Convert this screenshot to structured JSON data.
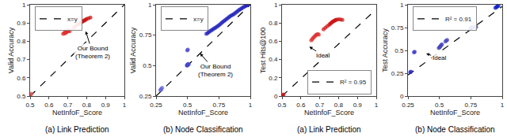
{
  "chart_data": [
    {
      "type": "scatter",
      "caption": "(a) Link Prediction",
      "xlabel": "NetInfoF_Score",
      "ylabel": "Valid Accuracy",
      "xlim": [
        0.5,
        1.0
      ],
      "ylim": [
        0.5,
        1.0
      ],
      "xticks": [
        0.5,
        0.6,
        0.7,
        0.8,
        0.9,
        1.0
      ],
      "yticks": [
        0.5,
        0.6,
        0.7,
        0.8,
        0.9,
        1.0
      ],
      "grid": false,
      "legend": "upper left",
      "annotations": [
        {
          "text": "Our Bound\n(Theorem 2)",
          "x": 0.795,
          "y": 0.855,
          "text_x": 0.83,
          "text_y": 0.74
        }
      ],
      "series": [
        {
          "name": "x=y",
          "type": "line",
          "line_style": "dashed",
          "color": "#000000",
          "x": [
            0.5,
            1.0
          ],
          "values": [
            0.5,
            1.0
          ]
        },
        {
          "type": "scatter",
          "color": "#e05050",
          "x": [
            0.503,
            0.507
          ],
          "values": [
            0.508,
            0.513
          ]
        },
        {
          "type": "scatter",
          "color": "#e03030",
          "x": [
            0.675,
            0.68,
            0.685,
            0.69,
            0.695,
            0.7,
            0.705,
            0.71,
            0.695,
            0.7,
            0.69,
            0.685
          ],
          "values": [
            0.84,
            0.845,
            0.848,
            0.852,
            0.856,
            0.86,
            0.858,
            0.854,
            0.85,
            0.855,
            0.848,
            0.843
          ]
        },
        {
          "type": "scatter",
          "color": "#cc1111",
          "x": [
            0.73,
            0.74,
            0.75,
            0.755,
            0.76,
            0.765,
            0.77,
            0.775,
            0.78,
            0.785,
            0.79,
            0.795,
            0.8,
            0.81,
            0.82
          ],
          "values": [
            0.875,
            0.882,
            0.89,
            0.893,
            0.896,
            0.899,
            0.903,
            0.906,
            0.91,
            0.912,
            0.916,
            0.918,
            0.922,
            0.926,
            0.93
          ]
        }
      ]
    },
    {
      "type": "scatter",
      "caption": "(b) Node Classification",
      "xlabel": "NetInfoF_Score",
      "ylabel": "Valid Accuracy",
      "xlim": [
        0.25,
        1.0
      ],
      "ylim": [
        0.25,
        1.0
      ],
      "xticks": [
        0.25,
        0.5,
        0.75,
        1.0
      ],
      "yticks": [
        0.25,
        0.5,
        0.75,
        1.0
      ],
      "grid": false,
      "legend": "upper left",
      "annotations": [
        {
          "text": "Our Bound\n(Theorem 2)",
          "x": 0.6,
          "y": 0.6,
          "text_x": 0.72,
          "text_y": 0.46
        }
      ],
      "series": [
        {
          "name": "x=y",
          "type": "line",
          "line_style": "dashed",
          "color": "#000000",
          "x": [
            0.25,
            1.0
          ],
          "values": [
            0.25,
            1.0
          ]
        },
        {
          "type": "scatter",
          "color": "#6666dd",
          "x": [
            0.285,
            0.292,
            0.298,
            0.29,
            0.287
          ],
          "values": [
            0.298,
            0.308,
            0.318,
            0.305,
            0.302
          ]
        },
        {
          "type": "scatter",
          "color": "#4444cc",
          "x": [
            0.495,
            0.5,
            0.505,
            0.51,
            0.5,
            0.497
          ],
          "values": [
            0.502,
            0.508,
            0.514,
            0.51,
            0.504,
            0.5
          ]
        },
        {
          "type": "scatter",
          "color": "#4444cc",
          "x": [
            0.498,
            0.503
          ],
          "values": [
            0.625,
            0.632
          ]
        },
        {
          "type": "scatter",
          "color": "#2222bb",
          "x": [
            0.65,
            0.66,
            0.67,
            0.68,
            0.69,
            0.7,
            0.71,
            0.72,
            0.73,
            0.74,
            0.75,
            0.76,
            0.77,
            0.78,
            0.79,
            0.8,
            0.81,
            0.82,
            0.83,
            0.84,
            0.85,
            0.86,
            0.87,
            0.88,
            0.89,
            0.9,
            0.91,
            0.92,
            0.93,
            0.94,
            0.95,
            0.96,
            0.97,
            0.975,
            0.98
          ],
          "values": [
            0.76,
            0.768,
            0.776,
            0.783,
            0.79,
            0.797,
            0.804,
            0.81,
            0.817,
            0.824,
            0.832,
            0.84,
            0.849,
            0.858,
            0.866,
            0.874,
            0.882,
            0.89,
            0.898,
            0.906,
            0.912,
            0.918,
            0.924,
            0.932,
            0.94,
            0.948,
            0.956,
            0.963,
            0.97,
            0.977,
            0.983,
            0.988,
            0.993,
            0.996,
            0.999
          ]
        }
      ]
    },
    {
      "type": "scatter",
      "caption": "(a) Link Prediction",
      "xlabel": "NetInfoF_Score",
      "ylabel": "Test Hits@100",
      "xlim": [
        0.5,
        1.0
      ],
      "ylim": [
        0.0,
        1.0
      ],
      "xticks": [
        0.5,
        0.6,
        0.7,
        0.8,
        0.9,
        1.0
      ],
      "yticks": [
        0.0,
        0.2,
        0.4,
        0.6,
        0.8,
        1.0
      ],
      "grid": false,
      "legend": "lower right",
      "annotations": [
        {
          "text": "Ideal",
          "x": 0.645,
          "y": 0.54,
          "text_x": 0.72,
          "text_y": 0.44
        }
      ],
      "series": [
        {
          "name": "R² = 0.95",
          "type": "line",
          "line_style": "dashed",
          "color": "#000000",
          "x": [
            0.5,
            1.0
          ],
          "values": [
            0.0,
            0.95
          ]
        },
        {
          "type": "scatter",
          "color": "#cc1111",
          "x": [
            0.504,
            0.508
          ],
          "values": [
            0.01,
            0.018
          ]
        },
        {
          "type": "scatter",
          "color": "#e03030",
          "x": [
            0.655,
            0.66,
            0.665,
            0.67,
            0.675,
            0.68,
            0.685,
            0.69,
            0.695
          ],
          "values": [
            0.61,
            0.622,
            0.635,
            0.647,
            0.658,
            0.668,
            0.675,
            0.678,
            0.672
          ]
        },
        {
          "type": "scatter",
          "color": "#cc1111",
          "x": [
            0.72,
            0.73,
            0.74,
            0.75,
            0.755,
            0.76,
            0.765,
            0.77,
            0.775,
            0.78,
            0.785,
            0.79,
            0.8,
            0.81,
            0.82
          ],
          "values": [
            0.73,
            0.748,
            0.765,
            0.78,
            0.79,
            0.8,
            0.808,
            0.816,
            0.822,
            0.828,
            0.833,
            0.837,
            0.84,
            0.838,
            0.833
          ]
        }
      ]
    },
    {
      "type": "scatter",
      "caption": "(b) Node Classification",
      "xlabel": "NetInfoF_Score",
      "ylabel": "Test Accuracy",
      "xlim": [
        0.25,
        1.0
      ],
      "ylim": [
        0.0,
        1.0
      ],
      "xticks": [
        0.25,
        0.5,
        0.75,
        1.0
      ],
      "yticks": [
        0.0,
        0.25,
        0.5,
        0.75,
        1.0
      ],
      "grid": false,
      "legend": "upper left",
      "annotations": [
        {
          "text": "Ideal",
          "x": 0.395,
          "y": 0.465,
          "text_x": 0.5,
          "text_y": 0.415
        }
      ],
      "series": [
        {
          "name": "R² = 0.91",
          "type": "line",
          "line_style": "dashed",
          "color": "#000000",
          "x": [
            0.25,
            1.0
          ],
          "values": [
            0.23,
            0.98
          ]
        },
        {
          "type": "scatter",
          "color": "#2222cc",
          "x": [
            0.268,
            0.273
          ],
          "values": [
            0.26,
            0.267
          ]
        },
        {
          "type": "scatter",
          "color": "#3333cc",
          "x": [
            0.298,
            0.303
          ],
          "values": [
            0.478,
            0.485
          ]
        },
        {
          "type": "scatter",
          "color": "#4444bb",
          "x": [
            0.495,
            0.5,
            0.505,
            0.51,
            0.515,
            0.52
          ],
          "values": [
            0.525,
            0.532,
            0.54,
            0.549,
            0.558,
            0.566
          ]
        },
        {
          "type": "scatter",
          "color": "#4444bb",
          "x": [
            0.548,
            0.555,
            0.562
          ],
          "values": [
            0.598,
            0.607,
            0.614
          ]
        },
        {
          "type": "scatter",
          "color": "#2233cc",
          "x": [
            0.745,
            0.752,
            0.758,
            0.764
          ],
          "values": [
            0.738,
            0.746,
            0.752,
            0.758
          ]
        },
        {
          "type": "scatter",
          "color": "#3344bb",
          "x": [
            0.786,
            0.792
          ],
          "values": [
            0.75,
            0.758
          ]
        },
        {
          "type": "scatter",
          "color": "#1122cc",
          "x": [
            0.945,
            0.952,
            0.958,
            0.964,
            0.97
          ],
          "values": [
            0.965,
            0.972,
            0.978,
            0.984,
            0.99
          ]
        }
      ]
    }
  ]
}
